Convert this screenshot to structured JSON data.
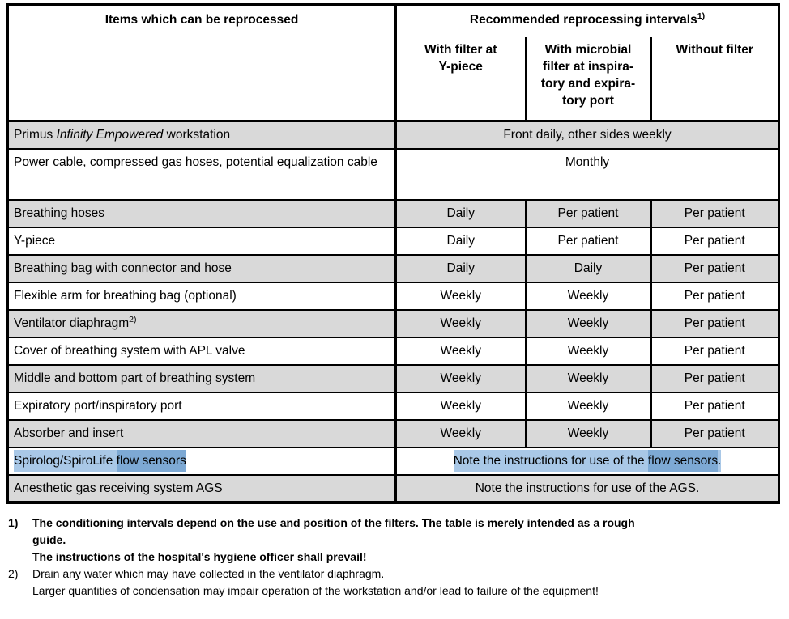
{
  "colors": {
    "row_gray": "#d9d9d9",
    "row_white": "#ffffff",
    "highlight_light_blue": "#a9c8e7",
    "highlight_dark_blue": "#7da9d4",
    "border_black": "#000000"
  },
  "table": {
    "header": {
      "items": "Items which can be reprocessed",
      "intervals": "Recommended reprocessing intervals",
      "intervals_sup": "1)",
      "sub": [
        "With filter at\nY-piece",
        "With microbial\nfilter at inspira-\ntory and expira-\ntory port",
        "Without filter"
      ]
    },
    "rows": [
      {
        "item_pre": "Primus ",
        "item_italic": "Infinity Empowered",
        "item_post": " workstation",
        "span": "Front daily, other sides weekly",
        "shade": "gray"
      },
      {
        "item": "Power cable, compressed gas hoses, potential equalization cable",
        "span": "Monthly",
        "shade": "white"
      },
      {
        "item": "Breathing hoses",
        "c": [
          "Daily",
          "Per patient",
          "Per patient"
        ],
        "shade": "gray"
      },
      {
        "item": "Y-piece",
        "c": [
          "Daily",
          "Per patient",
          "Per patient"
        ],
        "shade": "white"
      },
      {
        "item": "Breathing bag with connector and hose",
        "c": [
          "Daily",
          "Daily",
          "Per patient"
        ],
        "shade": "gray"
      },
      {
        "item": "Flexible arm for breathing bag (optional)",
        "c": [
          "Weekly",
          "Weekly",
          "Per patient"
        ],
        "shade": "white"
      },
      {
        "item": "Ventilator diaphragm",
        "item_sup": "2)",
        "c": [
          "Weekly",
          "Weekly",
          "Per patient"
        ],
        "shade": "gray"
      },
      {
        "item": "Cover of breathing system with APL valve",
        "c": [
          "Weekly",
          "Weekly",
          "Per patient"
        ],
        "shade": "white"
      },
      {
        "item": "Middle and bottom part of breathing system",
        "c": [
          "Weekly",
          "Weekly",
          "Per patient"
        ],
        "shade": "gray"
      },
      {
        "item": "Expiratory port/inspiratory port",
        "c": [
          "Weekly",
          "Weekly",
          "Per patient"
        ],
        "shade": "white"
      },
      {
        "item": "Absorber and insert",
        "c": [
          "Weekly",
          "Weekly",
          "Per patient"
        ],
        "shade": "gray"
      },
      {
        "item_hl_light": "Spirolog/SpiroLife ",
        "item_hl_dark": "flow sensors",
        "span_hl_light": "Note the instructions for use of the ",
        "span_hl_dark": "flow sensors",
        "span_tail": ".",
        "shade": "white"
      },
      {
        "item": "Anesthetic gas receiving system AGS",
        "span": "Note the instructions for use of the AGS.",
        "shade": "gray"
      }
    ]
  },
  "footnotes": [
    {
      "marker": "1)",
      "lines": [
        "The conditioning intervals depend on the use and position of the filters. The table is merely intended as a rough",
        "guide.",
        "The instructions of the hospital's hygiene officer shall prevail!"
      ]
    },
    {
      "marker": "2)",
      "lines": [
        "Drain any water which may have collected in the ventilator diaphragm.",
        "Larger quantities of condensation may impair operation of the workstation and/or lead to failure of the equipment!"
      ]
    }
  ]
}
